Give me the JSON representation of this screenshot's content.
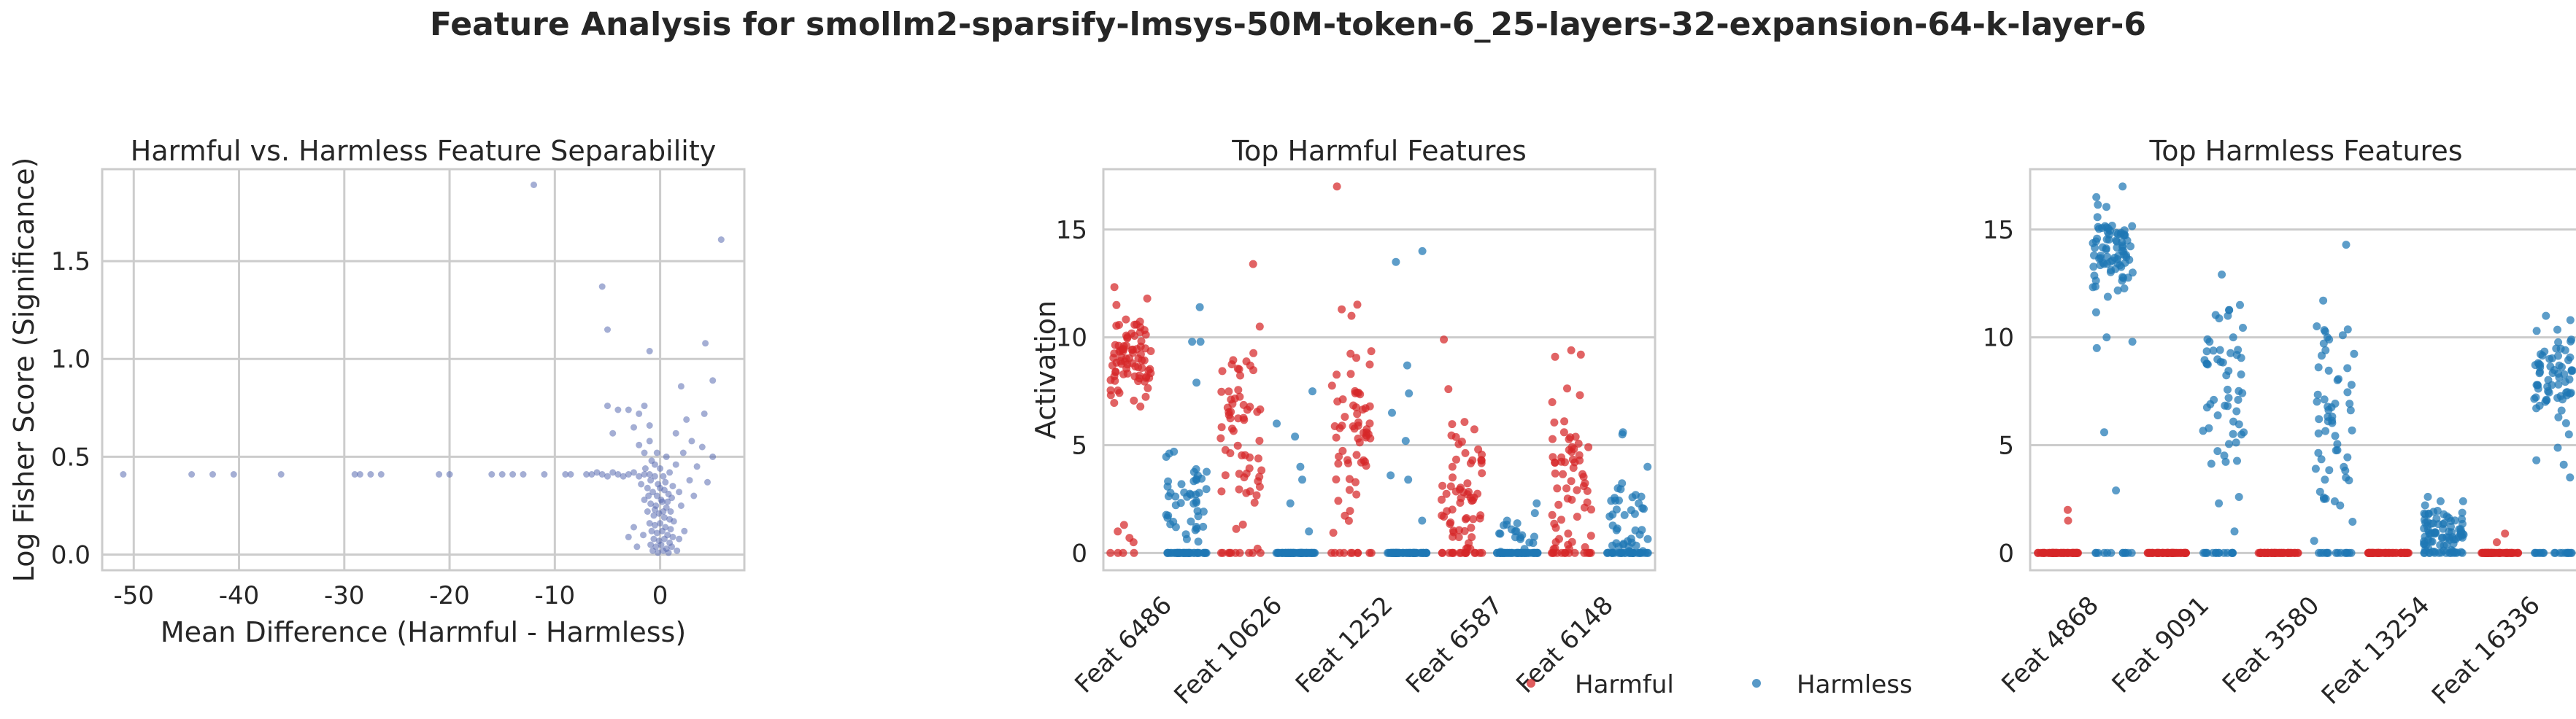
{
  "suptitle": "Feature Analysis for smollm2-sparsify-lmsys-50M-token-6_25-layers-32-expansion-64-k-layer-6",
  "colors": {
    "harmful": "#d62728",
    "harmless": "#1f77b4",
    "scatter": "#5a6bb0",
    "grid": "#cccccc",
    "frame": "#cccccc"
  },
  "legend": {
    "location": "bottom-center",
    "items": [
      "Harmful",
      "Harmless"
    ]
  },
  "chart_data": [
    {
      "type": "scatter",
      "title": "Harmful vs. Harmless Feature Separability",
      "xlabel": "Mean Difference (Harmful - Harmless)",
      "ylabel": "Log Fisher Score (Significance)",
      "xlim": [
        -53,
        8
      ],
      "ylim": [
        -0.08,
        1.97
      ],
      "xticks": [
        -50,
        -40,
        -30,
        -20,
        -10,
        0
      ],
      "yticks": [
        0.0,
        0.5,
        1.0,
        1.5
      ],
      "ytick_labels": [
        "0.0",
        "0.5",
        "1.0",
        "1.5"
      ],
      "grid": true,
      "points": [
        [
          -51.0,
          0.41
        ],
        [
          -44.5,
          0.41
        ],
        [
          -42.5,
          0.41
        ],
        [
          -40.5,
          0.41
        ],
        [
          -36.0,
          0.41
        ],
        [
          -29.0,
          0.41
        ],
        [
          -28.5,
          0.41
        ],
        [
          -27.5,
          0.41
        ],
        [
          -26.5,
          0.41
        ],
        [
          -21.0,
          0.41
        ],
        [
          -20.0,
          0.41
        ],
        [
          -16.0,
          0.41
        ],
        [
          -15.0,
          0.41
        ],
        [
          -14.0,
          0.41
        ],
        [
          -13.0,
          0.41
        ],
        [
          -11.0,
          0.41
        ],
        [
          -9.0,
          0.41
        ],
        [
          -8.5,
          0.41
        ],
        [
          -7.0,
          0.41
        ],
        [
          -6.5,
          0.41
        ],
        [
          -6.0,
          0.42
        ],
        [
          -5.5,
          0.41
        ],
        [
          -5.0,
          0.4
        ],
        [
          -4.5,
          0.42
        ],
        [
          -4.0,
          0.41
        ],
        [
          -3.5,
          0.4
        ],
        [
          -3.0,
          0.41
        ],
        [
          -2.5,
          0.42
        ],
        [
          -2.0,
          0.4
        ],
        [
          -1.5,
          0.41
        ],
        [
          -1.0,
          0.41
        ],
        [
          -0.5,
          0.4
        ],
        [
          -12.0,
          1.89
        ],
        [
          -5.5,
          1.37
        ],
        [
          -5.0,
          1.15
        ],
        [
          -1.0,
          1.04
        ],
        [
          5.8,
          1.61
        ],
        [
          4.3,
          1.08
        ],
        [
          2.0,
          0.86
        ],
        [
          5.0,
          0.89
        ],
        [
          2.5,
          0.69
        ],
        [
          4.2,
          0.72
        ],
        [
          -5.0,
          0.76
        ],
        [
          -4.0,
          0.74
        ],
        [
          -3.0,
          0.74
        ],
        [
          -2.0,
          0.72
        ],
        [
          -1.5,
          0.76
        ],
        [
          -2.5,
          0.65
        ],
        [
          -4.5,
          0.62
        ],
        [
          -1.0,
          0.66
        ],
        [
          1.5,
          0.62
        ],
        [
          3.0,
          0.58
        ],
        [
          4.0,
          0.55
        ],
        [
          2.2,
          0.52
        ],
        [
          3.5,
          0.45
        ],
        [
          1.5,
          0.46
        ],
        [
          5.0,
          0.5
        ],
        [
          2.8,
          0.38
        ],
        [
          1.8,
          0.32
        ],
        [
          3.2,
          0.3
        ],
        [
          4.5,
          0.37
        ],
        [
          2.0,
          0.25
        ],
        [
          -2.0,
          0.56
        ],
        [
          -1.5,
          0.52
        ],
        [
          -1.0,
          0.58
        ],
        [
          -0.8,
          0.48
        ],
        [
          -0.5,
          0.46
        ],
        [
          -0.3,
          0.52
        ],
        [
          0.0,
          0.44
        ],
        [
          0.3,
          0.4
        ],
        [
          0.6,
          0.5
        ],
        [
          0.9,
          0.42
        ],
        [
          -1.8,
          0.36
        ],
        [
          -1.2,
          0.34
        ],
        [
          -0.7,
          0.32
        ],
        [
          -0.3,
          0.3
        ],
        [
          0.0,
          0.34
        ],
        [
          0.4,
          0.33
        ],
        [
          0.8,
          0.31
        ],
        [
          1.1,
          0.29
        ],
        [
          -1.5,
          0.28
        ],
        [
          -0.9,
          0.26
        ],
        [
          -0.4,
          0.25
        ],
        [
          0.2,
          0.27
        ],
        [
          0.6,
          0.24
        ],
        [
          1.0,
          0.22
        ],
        [
          -1.2,
          0.22
        ],
        [
          -0.6,
          0.2
        ],
        [
          -0.1,
          0.21
        ],
        [
          0.4,
          0.19
        ],
        [
          0.9,
          0.18
        ],
        [
          1.3,
          0.17
        ],
        [
          -1.0,
          0.16
        ],
        [
          -0.5,
          0.15
        ],
        [
          0.0,
          0.16
        ],
        [
          0.5,
          0.14
        ],
        [
          1.0,
          0.13
        ],
        [
          -0.8,
          0.12
        ],
        [
          -0.3,
          0.11
        ],
        [
          0.2,
          0.12
        ],
        [
          0.7,
          0.1
        ],
        [
          1.2,
          0.09
        ],
        [
          -0.6,
          0.08
        ],
        [
          -0.1,
          0.07
        ],
        [
          0.4,
          0.08
        ],
        [
          0.9,
          0.06
        ],
        [
          -0.9,
          0.05
        ],
        [
          -0.4,
          0.04
        ],
        [
          0.1,
          0.05
        ],
        [
          0.6,
          0.03
        ],
        [
          1.1,
          0.04
        ],
        [
          -0.7,
          0.02
        ],
        [
          -0.2,
          0.01
        ],
        [
          0.3,
          0.02
        ],
        [
          0.8,
          0.01
        ],
        [
          -2.5,
          0.14
        ],
        [
          -3.0,
          0.09
        ],
        [
          -2.2,
          0.04
        ],
        [
          -1.6,
          0.1
        ],
        [
          1.8,
          0.08
        ],
        [
          2.3,
          0.12
        ],
        [
          1.6,
          0.02
        ],
        [
          -1.4,
          0.44
        ],
        [
          -0.9,
          0.38
        ],
        [
          -0.2,
          0.36
        ],
        [
          0.5,
          0.37
        ],
        [
          1.2,
          0.35
        ],
        [
          -1.1,
          0.3
        ],
        [
          0.1,
          0.28
        ],
        [
          0.7,
          0.27
        ],
        [
          -0.5,
          0.23
        ],
        [
          0.3,
          0.22
        ]
      ]
    },
    {
      "type": "scatter",
      "title": "Top Harmful Features",
      "xlabel": "",
      "ylabel": "Activation",
      "categories": [
        "Feat 6486",
        "Feat 10626",
        "Feat 1252",
        "Feat 6587",
        "Feat 6148"
      ],
      "ylim": [
        -0.8,
        17.8
      ],
      "yticks": [
        0,
        5,
        10,
        15
      ],
      "grid": true,
      "series": [
        {
          "name": "Harmful",
          "groups": [
            {
              "center": 9.0,
              "spread": 1.2,
              "n": 80,
              "zeros": 4,
              "outliers": [
                11.8,
                11.5,
                1.0,
                0.5,
                0.7,
                1.3
              ]
            },
            {
              "center": 5.5,
              "spread": 2.4,
              "n": 60,
              "zeros": 10,
              "outliers": [
                13.4,
                10.5
              ]
            },
            {
              "center": 5.5,
              "spread": 2.6,
              "n": 60,
              "zeros": 10,
              "outliers": [
                17.0,
                11.3,
                11.0
              ]
            },
            {
              "center": 3.0,
              "spread": 1.8,
              "n": 60,
              "zeros": 16,
              "outliers": [
                9.9,
                7.6
              ]
            },
            {
              "center": 3.5,
              "spread": 2.0,
              "n": 60,
              "zeros": 14,
              "outliers": [
                9.4,
                9.2
              ]
            }
          ]
        },
        {
          "name": "Harmless",
          "groups": [
            {
              "center": 2.5,
              "spread": 0.8,
              "n": 45,
              "zeros": 40,
              "outliers": [
                11.4,
                9.8,
                9.8,
                7.9,
                4.7
              ]
            },
            {
              "center": 0.0,
              "spread": 0.0,
              "n": 0,
              "zeros": 55,
              "outliers": [
                7.5,
                6.0,
                5.4,
                4.0,
                3.4,
                2.3,
                1.0
              ]
            },
            {
              "center": 0.0,
              "spread": 0.0,
              "n": 0,
              "zeros": 55,
              "outliers": [
                14.0,
                13.5,
                8.7,
                7.4,
                6.5,
                5.2,
                3.6,
                3.4,
                1.5
              ]
            },
            {
              "center": 0.8,
              "spread": 0.5,
              "n": 18,
              "zeros": 45,
              "outliers": [
                2.3,
                1.5
              ]
            },
            {
              "center": 1.0,
              "spread": 1.2,
              "n": 40,
              "zeros": 30,
              "outliers": [
                5.6,
                5.5,
                4.0,
                3.0
              ]
            }
          ]
        }
      ]
    },
    {
      "type": "scatter",
      "title": "Top Harmless Features",
      "xlabel": "",
      "ylabel": "",
      "categories": [
        "Feat 4868",
        "Feat 9091",
        "Feat 3580",
        "Feat 13254",
        "Feat 16336"
      ],
      "ylim": [
        -0.8,
        17.8
      ],
      "yticks": [
        0,
        5,
        10,
        15
      ],
      "grid": true,
      "series": [
        {
          "name": "Harmful",
          "groups": [
            {
              "center": 0.0,
              "spread": 0.0,
              "n": 0,
              "zeros": 55,
              "outliers": [
                2.0,
                1.5
              ]
            },
            {
              "center": 0.0,
              "spread": 0.0,
              "n": 0,
              "zeros": 55,
              "outliers": []
            },
            {
              "center": 0.0,
              "spread": 0.0,
              "n": 0,
              "zeros": 55,
              "outliers": []
            },
            {
              "center": 0.0,
              "spread": 0.0,
              "n": 0,
              "zeros": 55,
              "outliers": []
            },
            {
              "center": 0.0,
              "spread": 0.0,
              "n": 0,
              "zeros": 55,
              "outliers": [
                0.9,
                0.5
              ]
            }
          ]
        },
        {
          "name": "Harmless",
          "groups": [
            {
              "center": 14.0,
              "spread": 1.0,
              "n": 80,
              "zeros": 12,
              "outliers": [
                16.5,
                17.0,
                10.0,
                9.8,
                9.5,
                5.6,
                2.9
              ]
            },
            {
              "center": 7.5,
              "spread": 1.8,
              "n": 50,
              "zeros": 15,
              "outliers": [
                11.5,
                11.0,
                10.0,
                9.8,
                2.6,
                2.3,
                1.0
              ]
            },
            {
              "center": 6.5,
              "spread": 2.6,
              "n": 55,
              "zeros": 14,
              "outliers": [
                10.1,
                10.0,
                9.9,
                3.4,
                2.5
              ]
            },
            {
              "center": 1.0,
              "spread": 0.55,
              "n": 80,
              "zeros": 12,
              "outliers": [
                2.4,
                2.4
              ]
            },
            {
              "center": 8.0,
              "spread": 1.3,
              "n": 65,
              "zeros": 18,
              "outliers": [
                11.0,
                10.8,
                10.3,
                5.5,
                4.3,
                3.5
              ]
            }
          ]
        }
      ]
    }
  ]
}
